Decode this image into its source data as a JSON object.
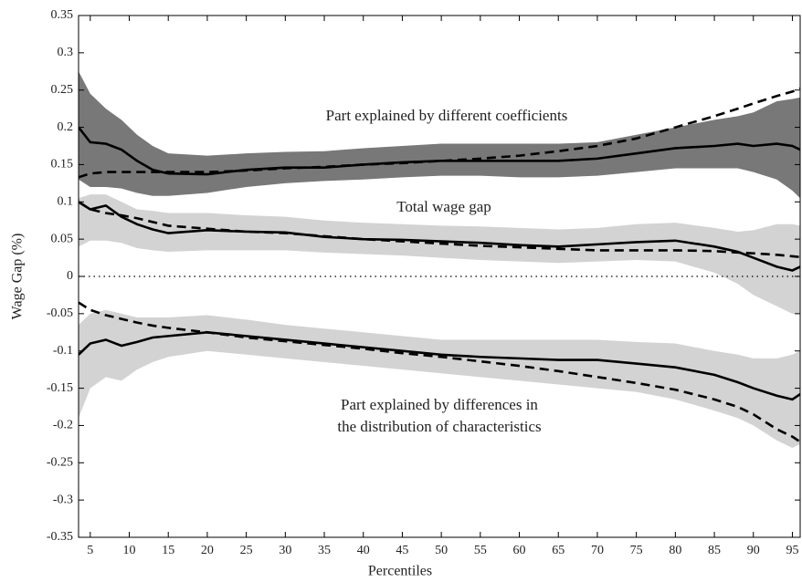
{
  "chart_data": {
    "type": "line",
    "xlabel": "Percentiles",
    "ylabel": "Wage Gap (%)",
    "annotations": [
      "Part explained by different coefficients",
      "Total wage gap",
      "Part explained by differences in",
      "the distribution of characteristics"
    ],
    "x": [
      3.5,
      5,
      7,
      9,
      11,
      13,
      15,
      20,
      25,
      30,
      35,
      40,
      45,
      50,
      55,
      60,
      65,
      70,
      75,
      80,
      85,
      88,
      90,
      93,
      95,
      96
    ],
    "bands": [
      {
        "color": "#d3d3d3",
        "upper": [
          0.105,
          0.11,
          0.11,
          0.1,
          0.09,
          0.088,
          0.085,
          0.085,
          0.082,
          0.08,
          0.075,
          0.072,
          0.07,
          0.068,
          0.067,
          0.065,
          0.063,
          0.065,
          0.07,
          0.072,
          0.065,
          0.06,
          0.062,
          0.07,
          0.07,
          0.068
        ],
        "lower": [
          0.04,
          0.048,
          0.048,
          0.045,
          0.038,
          0.035,
          0.033,
          0.035,
          0.035,
          0.035,
          0.032,
          0.03,
          0.028,
          0.025,
          0.022,
          0.02,
          0.018,
          0.02,
          0.022,
          0.02,
          0.005,
          -0.01,
          -0.025,
          -0.04,
          -0.05,
          -0.05
        ]
      },
      {
        "color": "#d3d3d3",
        "upper": [
          -0.065,
          -0.05,
          -0.045,
          -0.05,
          -0.055,
          -0.055,
          -0.055,
          -0.052,
          -0.058,
          -0.065,
          -0.07,
          -0.075,
          -0.08,
          -0.085,
          -0.085,
          -0.085,
          -0.085,
          -0.085,
          -0.088,
          -0.09,
          -0.1,
          -0.105,
          -0.11,
          -0.11,
          -0.105,
          -0.1
        ],
        "lower": [
          -0.19,
          -0.15,
          -0.135,
          -0.14,
          -0.125,
          -0.115,
          -0.108,
          -0.1,
          -0.105,
          -0.11,
          -0.115,
          -0.12,
          -0.125,
          -0.13,
          -0.135,
          -0.14,
          -0.145,
          -0.15,
          -0.155,
          -0.165,
          -0.18,
          -0.19,
          -0.2,
          -0.22,
          -0.23,
          -0.225
        ]
      },
      {
        "color": "#787878",
        "upper": [
          0.275,
          0.245,
          0.225,
          0.21,
          0.19,
          0.175,
          0.165,
          0.162,
          0.165,
          0.167,
          0.168,
          0.172,
          0.175,
          0.178,
          0.178,
          0.178,
          0.178,
          0.18,
          0.19,
          0.2,
          0.21,
          0.215,
          0.22,
          0.235,
          0.238,
          0.24
        ],
        "lower": [
          0.13,
          0.12,
          0.12,
          0.118,
          0.112,
          0.108,
          0.108,
          0.112,
          0.12,
          0.125,
          0.128,
          0.13,
          0.133,
          0.135,
          0.135,
          0.133,
          0.133,
          0.135,
          0.14,
          0.145,
          0.145,
          0.145,
          0.14,
          0.13,
          0.115,
          0.105
        ]
      }
    ],
    "series": [
      {
        "color": "#000000",
        "style": "solid",
        "values": [
          0.2,
          0.18,
          0.178,
          0.17,
          0.155,
          0.143,
          0.138,
          0.137,
          0.143,
          0.146,
          0.146,
          0.15,
          0.153,
          0.155,
          0.155,
          0.155,
          0.155,
          0.158,
          0.165,
          0.172,
          0.175,
          0.178,
          0.175,
          0.178,
          0.175,
          0.17
        ]
      },
      {
        "color": "#000000",
        "style": "dashed",
        "values": [
          0.133,
          0.138,
          0.14,
          0.14,
          0.14,
          0.14,
          0.14,
          0.14,
          0.142,
          0.145,
          0.147,
          0.15,
          0.152,
          0.155,
          0.158,
          0.162,
          0.168,
          0.175,
          0.185,
          0.2,
          0.215,
          0.225,
          0.232,
          0.242,
          0.248,
          0.252
        ]
      },
      {
        "color": "#000000",
        "style": "solid",
        "values": [
          0.1,
          0.09,
          0.095,
          0.08,
          0.07,
          0.063,
          0.058,
          0.062,
          0.06,
          0.059,
          0.053,
          0.05,
          0.049,
          0.047,
          0.045,
          0.042,
          0.04,
          0.043,
          0.046,
          0.048,
          0.04,
          0.033,
          0.025,
          0.013,
          0.008,
          0.013
        ]
      },
      {
        "color": "#000000",
        "style": "dashed",
        "values": [
          0.1,
          0.09,
          0.085,
          0.082,
          0.078,
          0.073,
          0.068,
          0.064,
          0.06,
          0.058,
          0.054,
          0.05,
          0.047,
          0.044,
          0.041,
          0.039,
          0.037,
          0.035,
          0.035,
          0.035,
          0.034,
          0.032,
          0.031,
          0.029,
          0.027,
          0.026
        ]
      },
      {
        "color": "#000000",
        "style": "solid",
        "values": [
          -0.105,
          -0.09,
          -0.085,
          -0.093,
          -0.088,
          -0.082,
          -0.08,
          -0.075,
          -0.08,
          -0.085,
          -0.09,
          -0.095,
          -0.1,
          -0.105,
          -0.108,
          -0.11,
          -0.112,
          -0.112,
          -0.117,
          -0.122,
          -0.132,
          -0.142,
          -0.15,
          -0.16,
          -0.165,
          -0.158
        ]
      },
      {
        "color": "#000000",
        "style": "dashed",
        "values": [
          -0.035,
          -0.045,
          -0.052,
          -0.057,
          -0.062,
          -0.066,
          -0.069,
          -0.075,
          -0.082,
          -0.087,
          -0.092,
          -0.097,
          -0.103,
          -0.108,
          -0.114,
          -0.12,
          -0.127,
          -0.135,
          -0.143,
          -0.152,
          -0.165,
          -0.175,
          -0.185,
          -0.205,
          -0.215,
          -0.222
        ]
      }
    ],
    "reference_line": 0,
    "xlim": [
      3.5,
      96
    ],
    "xticks": [
      5,
      10,
      15,
      20,
      25,
      30,
      35,
      40,
      45,
      50,
      55,
      60,
      65,
      70,
      75,
      80,
      85,
      90,
      95
    ],
    "ylim": [
      -0.35,
      0.35
    ],
    "yticks": [
      -0.35,
      -0.3,
      -0.25,
      -0.2,
      -0.15,
      -0.1,
      -0.05,
      0,
      0.05,
      0.1,
      0.15,
      0.2,
      0.25,
      0.3,
      0.35
    ]
  }
}
